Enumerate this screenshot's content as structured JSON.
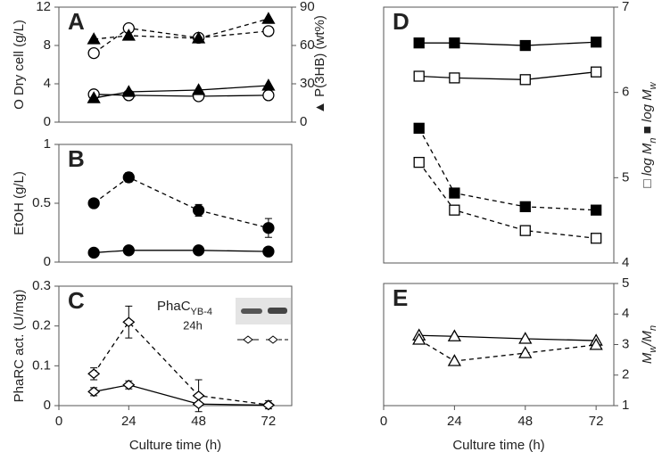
{
  "chart_data": [
    {
      "type": "line",
      "label": "A",
      "x": [
        12,
        24,
        48,
        72
      ],
      "xlim": [
        0,
        80
      ],
      "ylim": [
        0,
        12
      ],
      "yticks": [
        0,
        4,
        8,
        12
      ],
      "ylabel": [
        {
          "text": "O Dry cell (g/L)"
        }
      ],
      "y2lim": [
        0,
        90
      ],
      "y2ticks": [
        0,
        30,
        60,
        90
      ],
      "y2label": [
        {
          "text": "▲ P(3HB) (wt%)"
        }
      ],
      "series": [
        {
          "marker": "circle-open",
          "dash": "dashed",
          "color": "#000000",
          "values": [
            7.2,
            9.8,
            8.8,
            9.5
          ]
        },
        {
          "marker": "circle-open",
          "dash": "solid",
          "color": "#000000",
          "values": [
            2.9,
            2.8,
            2.7,
            2.8
          ]
        },
        {
          "marker": "triangle-filled",
          "dash": "dashed",
          "color": "#000000",
          "axis": "y2",
          "values": [
            64.9,
            67.7,
            65.6,
            80.9
          ]
        },
        {
          "marker": "triangle-filled",
          "dash": "solid",
          "color": "#000000",
          "axis": "y2",
          "values": [
            18.8,
            23.7,
            25.1,
            28.6
          ]
        }
      ]
    },
    {
      "type": "line",
      "label": "B",
      "x": [
        12,
        24,
        48,
        72
      ],
      "xlim": [
        0,
        80
      ],
      "ylim": [
        0,
        1
      ],
      "yticks": [
        0,
        0.5,
        1
      ],
      "ylabel": [
        {
          "text": "EtOH (g/L)"
        }
      ],
      "series": [
        {
          "marker": "circle-filled",
          "dash": "dashed",
          "color": "#000000",
          "values": [
            0.5,
            0.72,
            0.44,
            0.29
          ],
          "errors": [
            null,
            0.04,
            0.05,
            0.08
          ]
        },
        {
          "marker": "circle-filled",
          "dash": "solid",
          "color": "#000000",
          "values": [
            0.08,
            0.1,
            0.1,
            0.09
          ]
        }
      ]
    },
    {
      "type": "line",
      "label": "C",
      "x": [
        12,
        24,
        48,
        72
      ],
      "xlim": [
        0,
        80
      ],
      "xticks": [
        0,
        24,
        48,
        72
      ],
      "xlabel": "Culture time (h)",
      "ylim": [
        0,
        0.3
      ],
      "yticks": [
        0,
        0.1,
        0.2,
        0.3
      ],
      "ylabel": [
        {
          "text": "PhaRC act. (U/mg)"
        }
      ],
      "inset": {
        "title": [
          {
            "text": "PhaC"
          },
          {
            "text": "YB-4",
            "sub": true
          }
        ],
        "subtitle": "24h"
      },
      "series": [
        {
          "marker": "diamond-open",
          "dash": "dashed",
          "color": "#000000",
          "values": [
            0.08,
            0.21,
            0.025,
            0.002
          ],
          "errors": [
            0.015,
            0.04,
            0.04,
            0.01
          ]
        },
        {
          "marker": "diamond-open",
          "dash": "solid",
          "color": "#000000",
          "values": [
            0.035,
            0.052,
            0.004,
            0.001
          ],
          "errors": [
            0.01,
            0.01,
            null,
            null
          ]
        }
      ]
    },
    {
      "type": "line",
      "label": "D",
      "x": [
        12,
        24,
        48,
        72
      ],
      "xlim": [
        0,
        78
      ],
      "y2lim": [
        4,
        7
      ],
      "y2ticks": [
        4,
        5,
        6,
        7
      ],
      "y2label": [
        {
          "text": "□ log M"
        },
        {
          "text": "n",
          "sub": true
        },
        {
          "text": "  ■ log M"
        },
        {
          "text": "w",
          "sub": true
        }
      ],
      "series": [
        {
          "marker": "square-filled",
          "dash": "solid",
          "color": "#000000",
          "axis": "y2",
          "values": [
            6.58,
            6.58,
            6.55,
            6.59
          ]
        },
        {
          "marker": "square-open",
          "dash": "solid",
          "color": "#000000",
          "axis": "y2",
          "values": [
            6.19,
            6.17,
            6.15,
            6.24
          ]
        },
        {
          "marker": "square-filled",
          "dash": "dashed",
          "color": "#000000",
          "axis": "y2",
          "values": [
            5.58,
            4.82,
            4.66,
            4.62
          ]
        },
        {
          "marker": "square-open",
          "dash": "dashed",
          "color": "#000000",
          "axis": "y2",
          "values": [
            5.18,
            4.62,
            4.38,
            4.29
          ]
        }
      ]
    },
    {
      "type": "line",
      "label": "E",
      "x": [
        12,
        24,
        48,
        72
      ],
      "xlim": [
        0,
        78
      ],
      "xticks": [
        0,
        24,
        48,
        72
      ],
      "xlabel": "Culture time (h)",
      "y2lim": [
        1,
        5
      ],
      "y2ticks": [
        1,
        2,
        3,
        4,
        5
      ],
      "y2label": [
        {
          "text": "M"
        },
        {
          "text": "w",
          "sub": true
        },
        {
          "text": "/M"
        },
        {
          "text": "n",
          "sub": true
        }
      ],
      "series": [
        {
          "marker": "triangle-open",
          "dash": "solid",
          "color": "#000000",
          "axis": "y2",
          "values": [
            3.3,
            3.27,
            3.19,
            3.13
          ]
        },
        {
          "marker": "triangle-open",
          "dash": "dashed",
          "color": "#000000",
          "axis": "y2",
          "values": [
            3.16,
            2.46,
            2.72,
            2.99
          ]
        }
      ]
    }
  ]
}
